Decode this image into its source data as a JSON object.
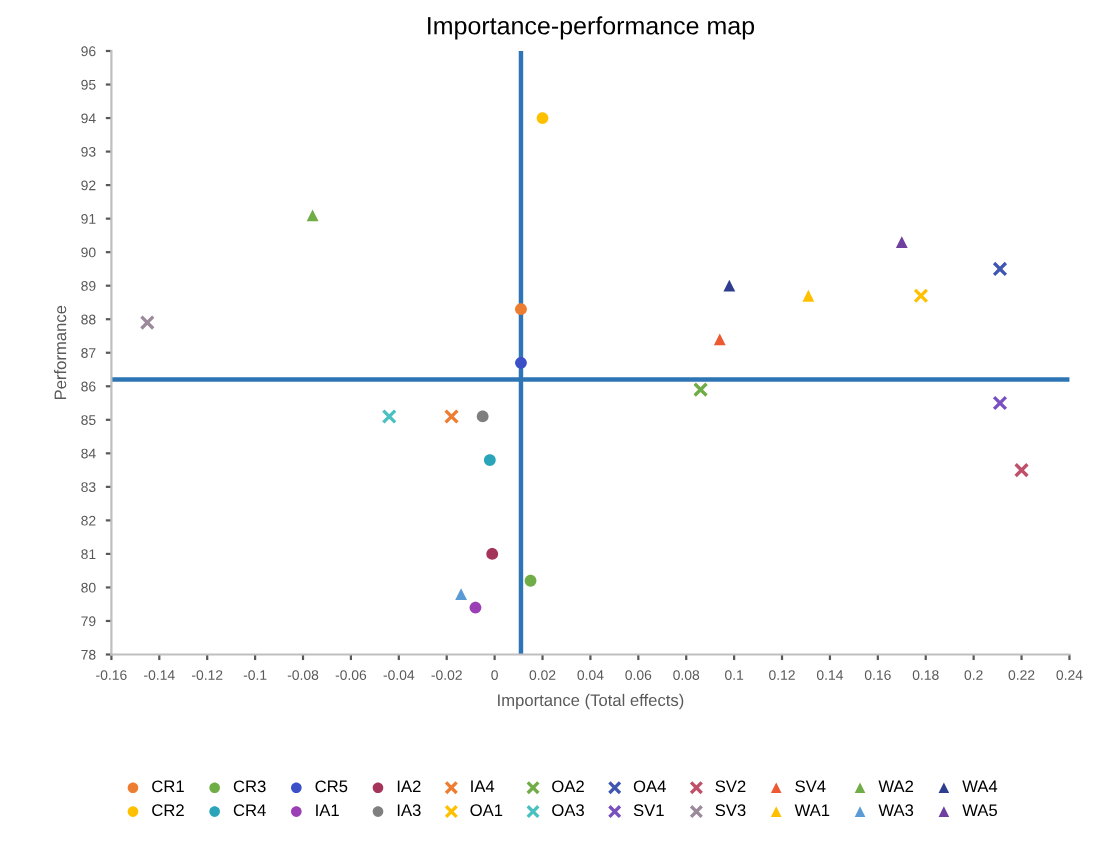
{
  "chart_data": {
    "type": "scatter",
    "title": "Importance-performance map",
    "xlabel": "Importance (Total effects)",
    "ylabel": "Performance",
    "xlim": [
      -0.16,
      0.24
    ],
    "xticks": [
      -0.16,
      -0.14,
      -0.12,
      -0.1,
      -0.08,
      -0.06,
      -0.04,
      -0.02,
      0,
      0.02,
      0.04,
      0.06,
      0.08,
      0.1,
      0.12,
      0.14,
      0.16,
      0.18,
      0.2,
      0.22,
      0.24
    ],
    "ylim": [
      78,
      96
    ],
    "yticks": [
      78,
      79,
      80,
      81,
      82,
      83,
      84,
      85,
      86,
      87,
      88,
      89,
      90,
      91,
      92,
      93,
      94,
      95,
      96
    ],
    "grid": false,
    "legend": "bottom",
    "ref_lines": [
      {
        "axis": "x",
        "value": 0.011,
        "color": "#2e75b6"
      },
      {
        "axis": "y",
        "value": 86.2,
        "color": "#2e75b6"
      }
    ],
    "series": [
      {
        "name": "CR1",
        "color": "#ed7d31",
        "marker": "circle",
        "x": [
          0.011
        ],
        "values": [
          88.3
        ]
      },
      {
        "name": "CR2",
        "color": "#ffc000",
        "marker": "circle",
        "x": [
          0.02
        ],
        "values": [
          94.0
        ]
      },
      {
        "name": "CR3",
        "color": "#70ad47",
        "marker": "circle",
        "x": [
          0.015
        ],
        "values": [
          80.2
        ]
      },
      {
        "name": "CR4",
        "color": "#2aa4b8",
        "marker": "circle",
        "x": [
          -0.002
        ],
        "values": [
          83.8
        ]
      },
      {
        "name": "CR5",
        "color": "#3a4fc8",
        "marker": "circle",
        "x": [
          0.011
        ],
        "values": [
          86.7
        ]
      },
      {
        "name": "IA1",
        "color": "#9b3fb5",
        "marker": "circle",
        "x": [
          -0.008
        ],
        "values": [
          79.4
        ]
      },
      {
        "name": "IA2",
        "color": "#a5345a",
        "marker": "circle",
        "x": [
          -0.001
        ],
        "values": [
          81.0
        ]
      },
      {
        "name": "IA3",
        "color": "#7f7f7f",
        "marker": "circle",
        "x": [
          -0.005
        ],
        "values": [
          85.1
        ]
      },
      {
        "name": "IA4",
        "color": "#ed7d31",
        "marker": "cross",
        "x": [
          -0.018
        ],
        "values": [
          85.1
        ]
      },
      {
        "name": "OA1",
        "color": "#ffc000",
        "marker": "cross",
        "x": [
          0.178
        ],
        "values": [
          88.7
        ]
      },
      {
        "name": "OA2",
        "color": "#70ad47",
        "marker": "cross",
        "x": [
          0.086
        ],
        "values": [
          85.9
        ]
      },
      {
        "name": "OA3",
        "color": "#4bc0c0",
        "marker": "cross",
        "x": [
          -0.044
        ],
        "values": [
          85.1
        ]
      },
      {
        "name": "OA4",
        "color": "#4156b0",
        "marker": "cross",
        "x": [
          0.211
        ],
        "values": [
          89.5
        ]
      },
      {
        "name": "SV1",
        "color": "#7a4fc0",
        "marker": "cross",
        "x": [
          0.211
        ],
        "values": [
          85.5
        ]
      },
      {
        "name": "SV2",
        "color": "#c0506a",
        "marker": "cross",
        "x": [
          0.22
        ],
        "values": [
          83.5
        ]
      },
      {
        "name": "SV3",
        "color": "#9a8a9a",
        "marker": "cross",
        "x": [
          -0.145
        ],
        "values": [
          87.9
        ]
      },
      {
        "name": "SV4",
        "color": "#ed5a31",
        "marker": "triangle",
        "x": [
          0.094
        ],
        "values": [
          87.4
        ]
      },
      {
        "name": "WA1",
        "color": "#ffc000",
        "marker": "triangle",
        "x": [
          0.131
        ],
        "values": [
          88.7
        ]
      },
      {
        "name": "WA2",
        "color": "#70ad47",
        "marker": "triangle",
        "x": [
          -0.076
        ],
        "values": [
          91.1
        ]
      },
      {
        "name": "WA3",
        "color": "#5b9bd5",
        "marker": "triangle",
        "x": [
          -0.014
        ],
        "values": [
          79.8
        ]
      },
      {
        "name": "WA4",
        "color": "#2f3d8f",
        "marker": "triangle",
        "x": [
          0.098
        ],
        "values": [
          89.0
        ]
      },
      {
        "name": "WA5",
        "color": "#7040a0",
        "marker": "triangle",
        "x": [
          0.17
        ],
        "values": [
          90.3
        ]
      }
    ]
  }
}
